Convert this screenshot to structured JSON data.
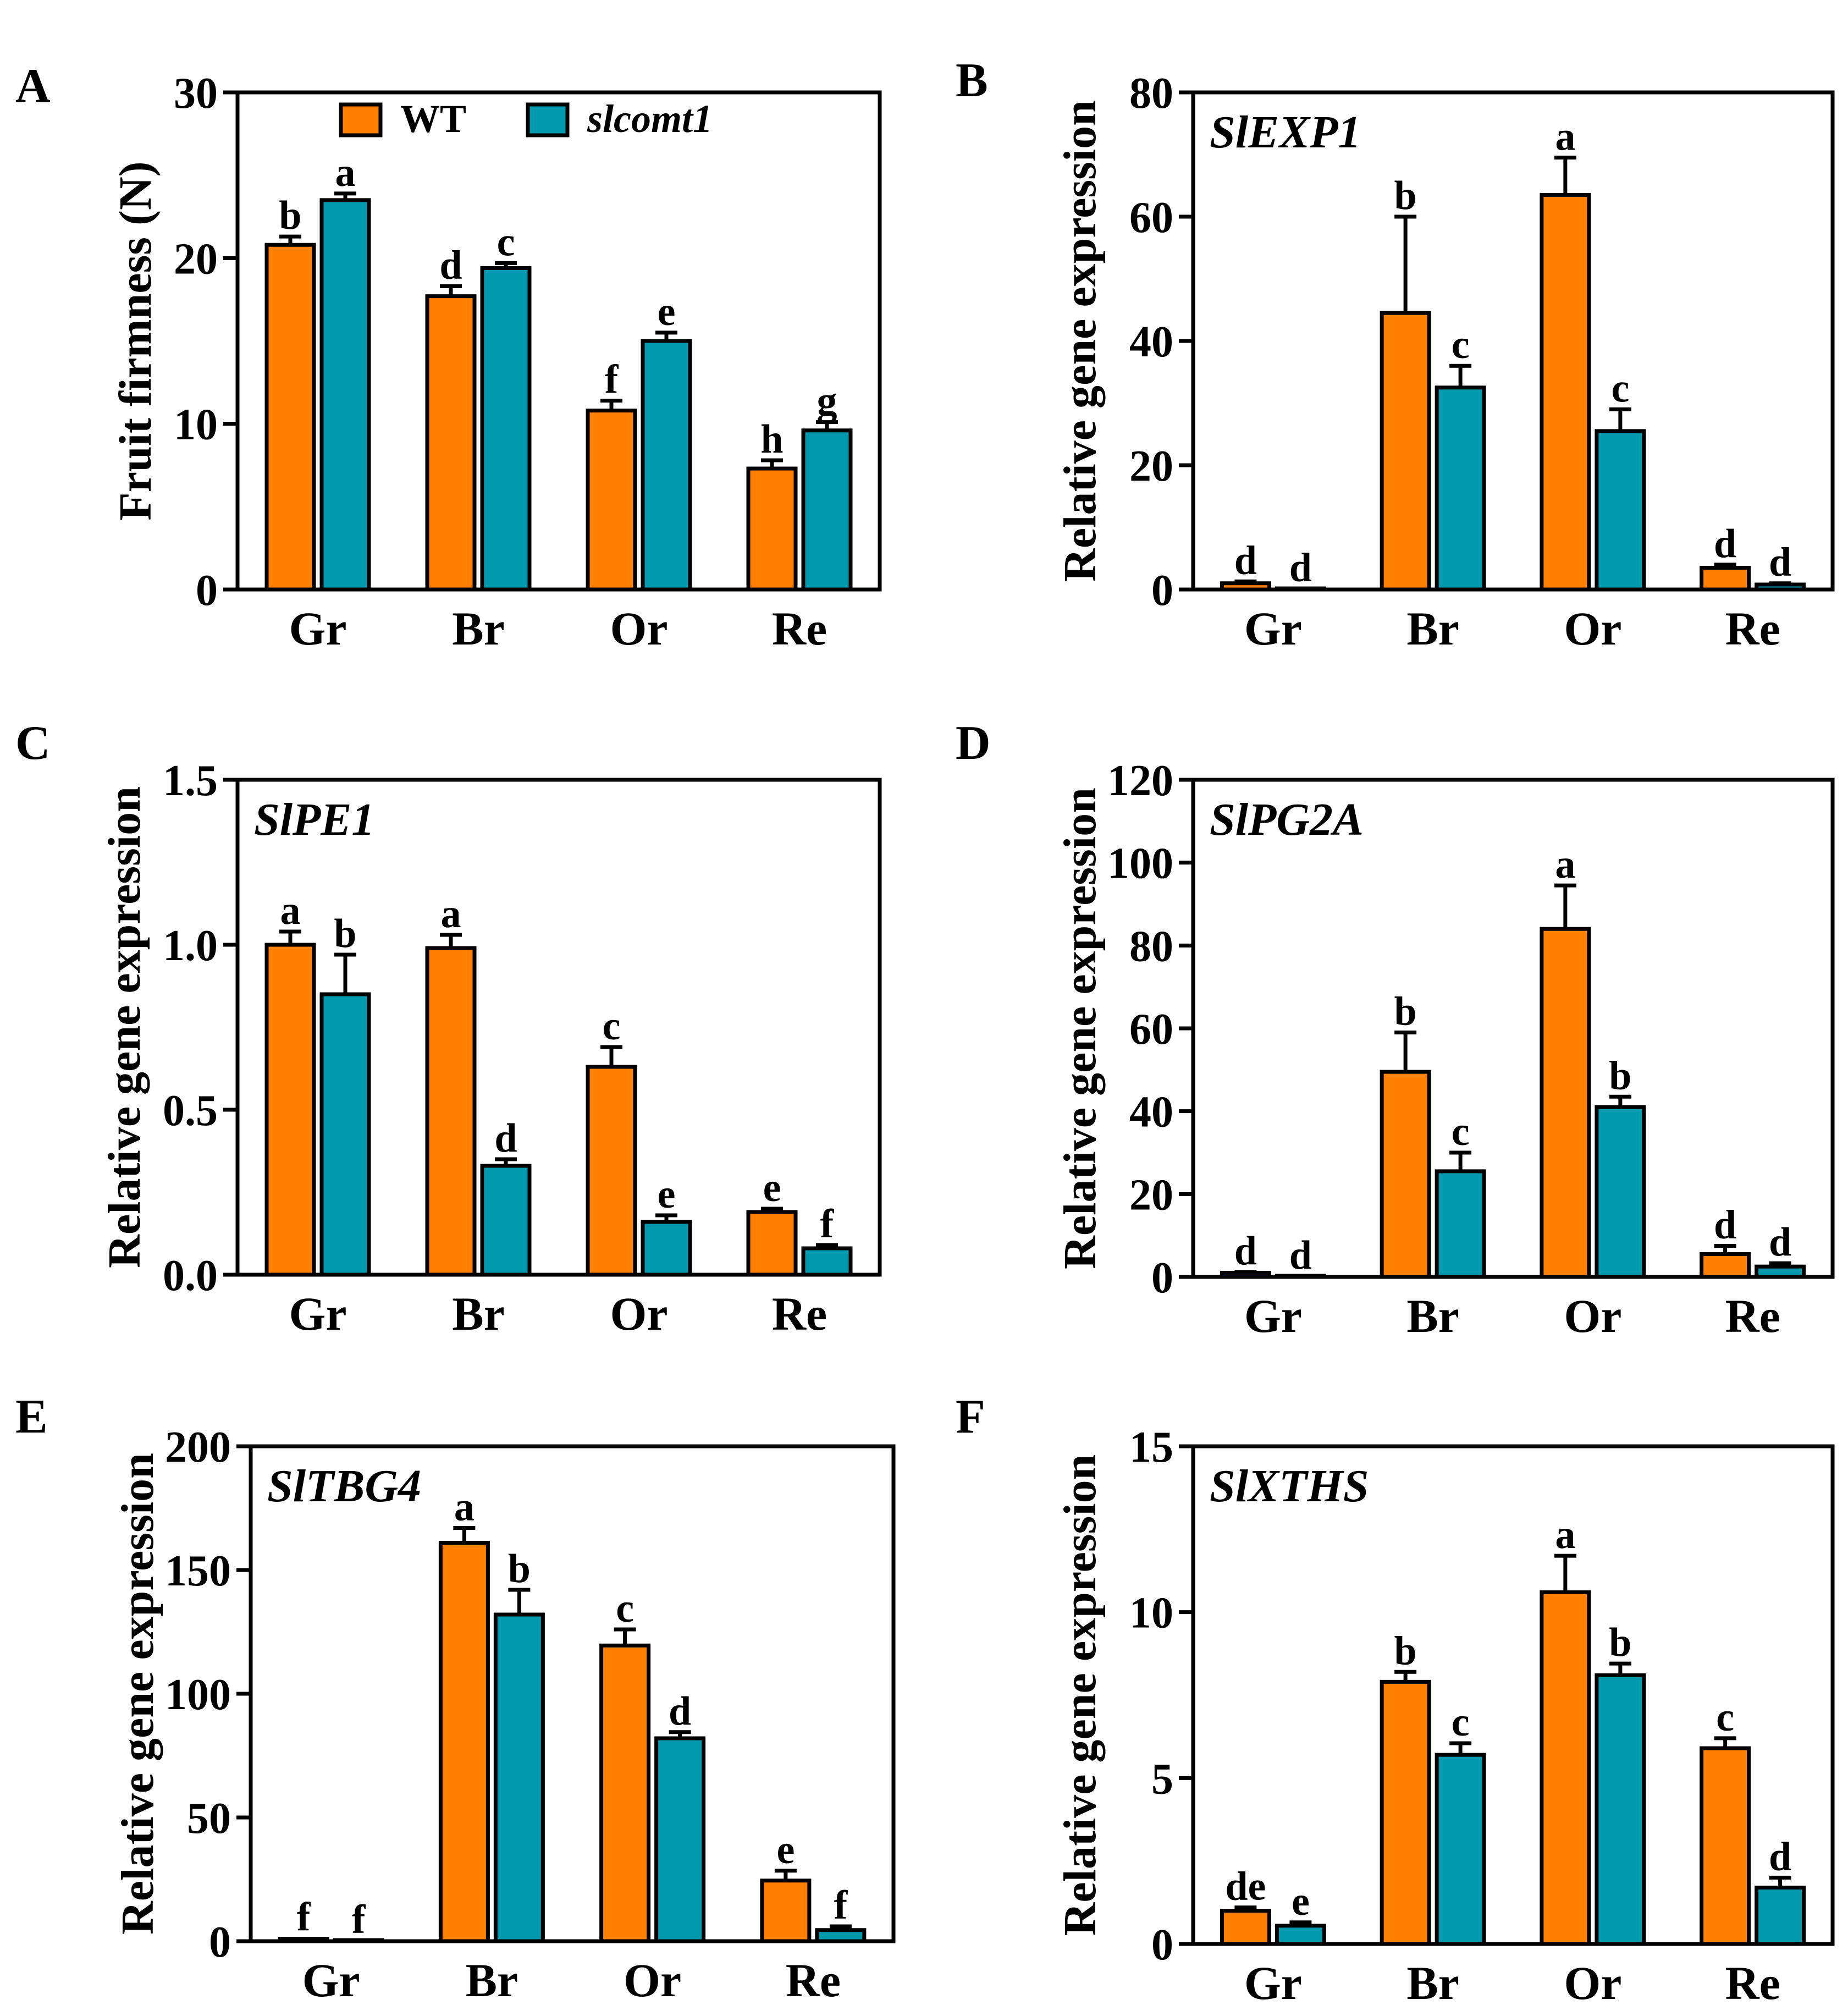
{
  "colors": {
    "wt": "#FF8000",
    "mutant": "#0099AE",
    "axis": "#000000"
  },
  "legend": [
    {
      "key": "wt",
      "label": "WT"
    },
    {
      "key": "mutant",
      "label": "slcomt1"
    }
  ],
  "chart_data": [
    {
      "panel": "A",
      "type": "bar",
      "title": "",
      "ylabel": "Fruit firmness (N)",
      "categories": [
        "Gr",
        "Br",
        "Or",
        "Re"
      ],
      "ylim": [
        0,
        30
      ],
      "yticks": [
        "0",
        "10",
        "20",
        "30"
      ],
      "series": [
        {
          "name": "WT",
          "key": "wt",
          "values": [
            20.8,
            17.7,
            10.8,
            7.3
          ],
          "errors": [
            0.5,
            0.6,
            0.6,
            0.5
          ],
          "letters": [
            "b",
            "d",
            "f",
            "h"
          ]
        },
        {
          "name": "slcomt1",
          "key": "mutant",
          "values": [
            23.5,
            19.4,
            15.0,
            9.6
          ],
          "errors": [
            0.4,
            0.3,
            0.5,
            0.5
          ],
          "letters": [
            "a",
            "c",
            "e",
            "g"
          ]
        }
      ]
    },
    {
      "panel": "B",
      "type": "bar",
      "title": "SlEXP1",
      "ylabel": "Relative gene expression",
      "categories": [
        "Gr",
        "Br",
        "Or",
        "Re"
      ],
      "ylim": [
        0,
        80
      ],
      "yticks": [
        "0",
        "20",
        "40",
        "60",
        "80"
      ],
      "series": [
        {
          "name": "WT",
          "key": "wt",
          "values": [
            1.0,
            44.5,
            63.5,
            3.5
          ],
          "errors": [
            0.3,
            15.5,
            6.0,
            0.5
          ],
          "letters": [
            "d",
            "b",
            "a",
            "d"
          ]
        },
        {
          "name": "slcomt1",
          "key": "mutant",
          "values": [
            0.1,
            32.5,
            25.5,
            0.8
          ],
          "errors": [
            0.05,
            3.5,
            3.5,
            0.2
          ],
          "letters": [
            "d",
            "c",
            "c",
            "d"
          ]
        }
      ]
    },
    {
      "panel": "C",
      "type": "bar",
      "title": "SlPE1",
      "ylabel": "Relative gene expression",
      "categories": [
        "Gr",
        "Br",
        "Or",
        "Re"
      ],
      "ylim": [
        0,
        1.5
      ],
      "yticks": [
        "0.0",
        "0.5",
        "1.0",
        "1.5"
      ],
      "series": [
        {
          "name": "WT",
          "key": "wt",
          "values": [
            1.0,
            0.99,
            0.63,
            0.19
          ],
          "errors": [
            0.04,
            0.04,
            0.06,
            0.01
          ],
          "letters": [
            "a",
            "a",
            "c",
            "e"
          ]
        },
        {
          "name": "slcomt1",
          "key": "mutant",
          "values": [
            0.85,
            0.33,
            0.16,
            0.08
          ],
          "errors": [
            0.12,
            0.02,
            0.02,
            0.01
          ],
          "letters": [
            "b",
            "d",
            "e",
            "f"
          ]
        }
      ]
    },
    {
      "panel": "D",
      "type": "bar",
      "title": "SlPG2A",
      "ylabel": "Relative gene expression",
      "categories": [
        "Gr",
        "Br",
        "Or",
        "Re"
      ],
      "ylim": [
        0,
        120
      ],
      "yticks": [
        "0",
        "20",
        "40",
        "60",
        "80",
        "100",
        "120"
      ],
      "series": [
        {
          "name": "WT",
          "key": "wt",
          "values": [
            1.0,
            49.5,
            84.0,
            5.5
          ],
          "errors": [
            0.2,
            9.5,
            10.5,
            2.0
          ],
          "letters": [
            "d",
            "b",
            "a",
            "d"
          ]
        },
        {
          "name": "slcomt1",
          "key": "mutant",
          "values": [
            0.1,
            25.5,
            41.0,
            2.5
          ],
          "errors": [
            0.05,
            4.5,
            2.5,
            0.8
          ],
          "letters": [
            "d",
            "c",
            "b",
            "d"
          ]
        }
      ]
    },
    {
      "panel": "E",
      "type": "bar",
      "title": "SlTBG4",
      "ylabel": "Relative gene expression",
      "categories": [
        "Gr",
        "Br",
        "Or",
        "Re"
      ],
      "ylim": [
        0,
        200
      ],
      "yticks": [
        "0",
        "50",
        "100",
        "150",
        "200"
      ],
      "series": [
        {
          "name": "WT",
          "key": "wt",
          "values": [
            1.0,
            161.0,
            119.5,
            24.5
          ],
          "errors": [
            0.2,
            6.0,
            6.5,
            4.0
          ],
          "letters": [
            "f",
            "a",
            "c",
            "e"
          ]
        },
        {
          "name": "slcomt1",
          "key": "mutant",
          "values": [
            0.2,
            132.0,
            82.0,
            4.5
          ],
          "errors": [
            0.05,
            10.0,
            2.5,
            1.5
          ],
          "letters": [
            "f",
            "b",
            "d",
            "f"
          ]
        }
      ]
    },
    {
      "panel": "F",
      "type": "bar",
      "title": "SlXTHS",
      "ylabel": "Relative gene expression",
      "categories": [
        "Gr",
        "Br",
        "Or",
        "Re"
      ],
      "ylim": [
        0,
        15
      ],
      "yticks": [
        "0",
        "5",
        "10",
        "15"
      ],
      "series": [
        {
          "name": "WT",
          "key": "wt",
          "values": [
            1.0,
            7.9,
            10.6,
            5.9
          ],
          "errors": [
            0.1,
            0.3,
            1.1,
            0.3
          ],
          "letters": [
            "de",
            "b",
            "a",
            "c"
          ]
        },
        {
          "name": "slcomt1",
          "key": "mutant",
          "values": [
            0.55,
            5.7,
            8.1,
            1.7
          ],
          "errors": [
            0.1,
            0.35,
            0.35,
            0.3
          ],
          "letters": [
            "e",
            "c",
            "b",
            "d"
          ]
        }
      ]
    }
  ]
}
